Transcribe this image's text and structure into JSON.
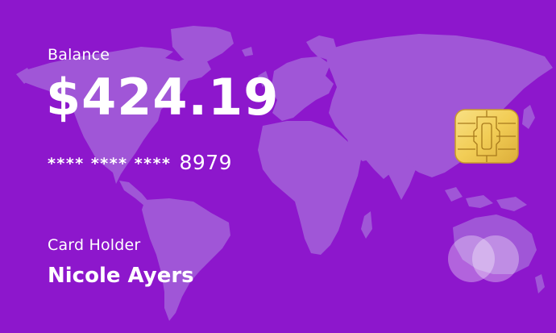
{
  "card": {
    "balance_label": "Balance",
    "balance_amount": "$424.19",
    "number_mask": "**** **** ****",
    "number_last4": "8979",
    "holder_label": "Card Holder",
    "holder_name": "Nicole Ayers"
  },
  "colors": {
    "card_background": "#8d17cc",
    "map_fill": "#a056d7",
    "chip_gold": "#f2cd56",
    "text": "#ffffff"
  },
  "icons": {
    "chip": "chip-icon",
    "brand": "card-brand-logo",
    "background": "world-map"
  }
}
